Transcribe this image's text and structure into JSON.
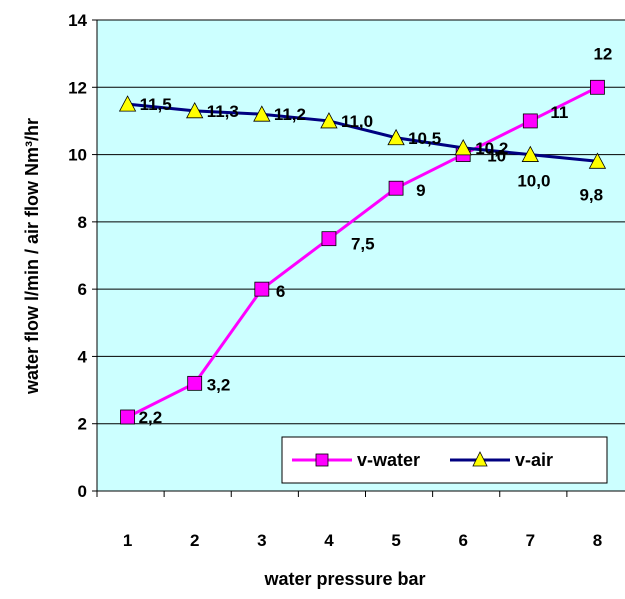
{
  "chart_data": {
    "type": "line",
    "title": "",
    "xlabel": "water pressure bar",
    "ylabel": "water flow l/min / air flow Nm³/hr",
    "categories": [
      "1",
      "2",
      "3",
      "4",
      "5",
      "6",
      "7",
      "8"
    ],
    "ylim": [
      0,
      14
    ],
    "yticks": [
      "0",
      "2",
      "4",
      "6",
      "8",
      "10",
      "12",
      "14"
    ],
    "grid": true,
    "legend_position": "bottom-right",
    "plot_background": "#ccffff",
    "series": [
      {
        "name": "v-water",
        "color": "#ff00ff",
        "marker": "square",
        "values": [
          2.2,
          3.2,
          6,
          7.5,
          9,
          10,
          11,
          12
        ],
        "labels": [
          "2,2",
          "3,2",
          "6",
          "7,5",
          "9",
          "10",
          "11",
          "12"
        ]
      },
      {
        "name": "v-air",
        "color": "#000080",
        "marker": "triangle",
        "marker_color": "#ffff00",
        "values": [
          11.5,
          11.3,
          11.2,
          11.0,
          10.5,
          10.2,
          10.0,
          9.8
        ],
        "labels": [
          "11,5",
          "11,3",
          "11,2",
          "11,0",
          "10,5",
          "10,2",
          "10,0",
          "9,8"
        ]
      }
    ]
  }
}
